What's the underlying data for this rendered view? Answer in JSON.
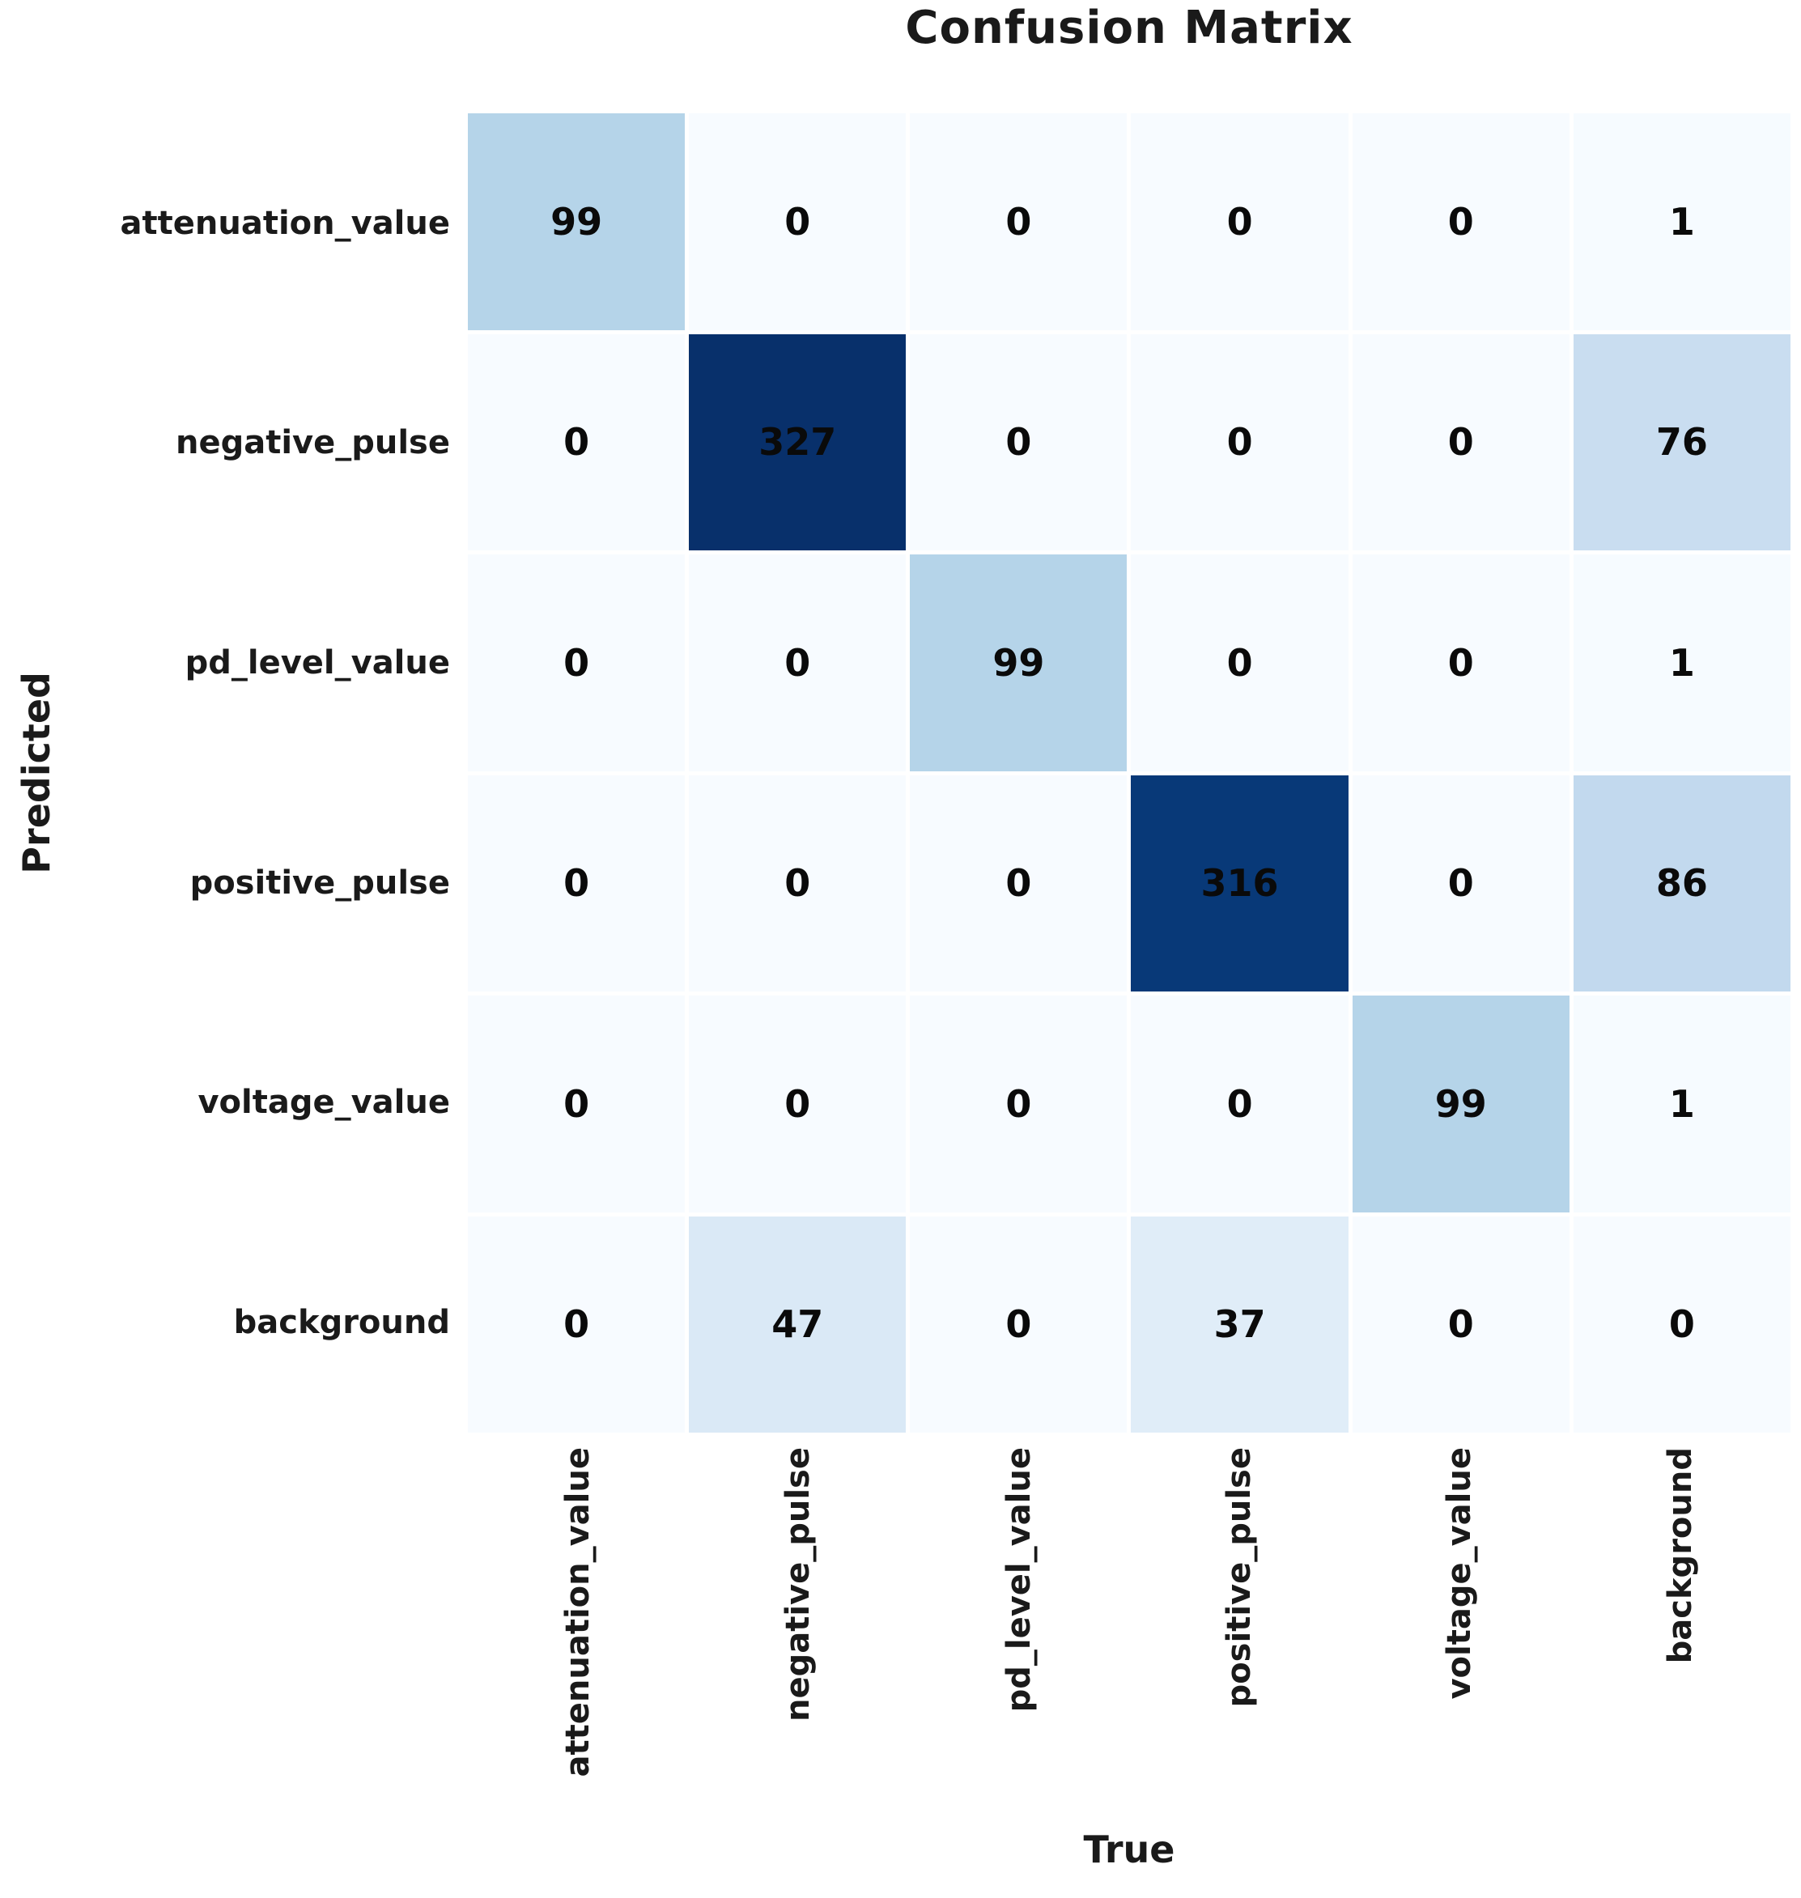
{
  "chart_data": {
    "type": "heatmap",
    "title": "Confusion Matrix",
    "xlabel": "True",
    "ylabel": "Predicted",
    "x_categories": [
      "attenuation_value",
      "negative_pulse",
      "pd_level_value",
      "positive_pulse",
      "voltage_value",
      "background"
    ],
    "y_categories": [
      "attenuation_value",
      "negative_pulse",
      "pd_level_value",
      "positive_pulse",
      "voltage_value",
      "background"
    ],
    "values": [
      [
        99,
        0,
        0,
        0,
        0,
        1
      ],
      [
        0,
        327,
        0,
        0,
        0,
        76
      ],
      [
        0,
        0,
        99,
        0,
        0,
        1
      ],
      [
        0,
        0,
        0,
        316,
        0,
        86
      ],
      [
        0,
        0,
        0,
        0,
        99,
        1
      ],
      [
        0,
        47,
        0,
        37,
        0,
        0
      ]
    ],
    "vmin": 0,
    "vmax": 327,
    "colormap": "Blues",
    "colormap_anchors": [
      "#f7fbff",
      "#deebf7",
      "#c6dbef",
      "#9ecae1",
      "#6baed6",
      "#4292c6",
      "#2171b5",
      "#08519c",
      "#08306b"
    ],
    "annotation_color": "#0a0a0a",
    "grid_gap_color": "#ffffff",
    "legend": "none",
    "grid": "off"
  }
}
